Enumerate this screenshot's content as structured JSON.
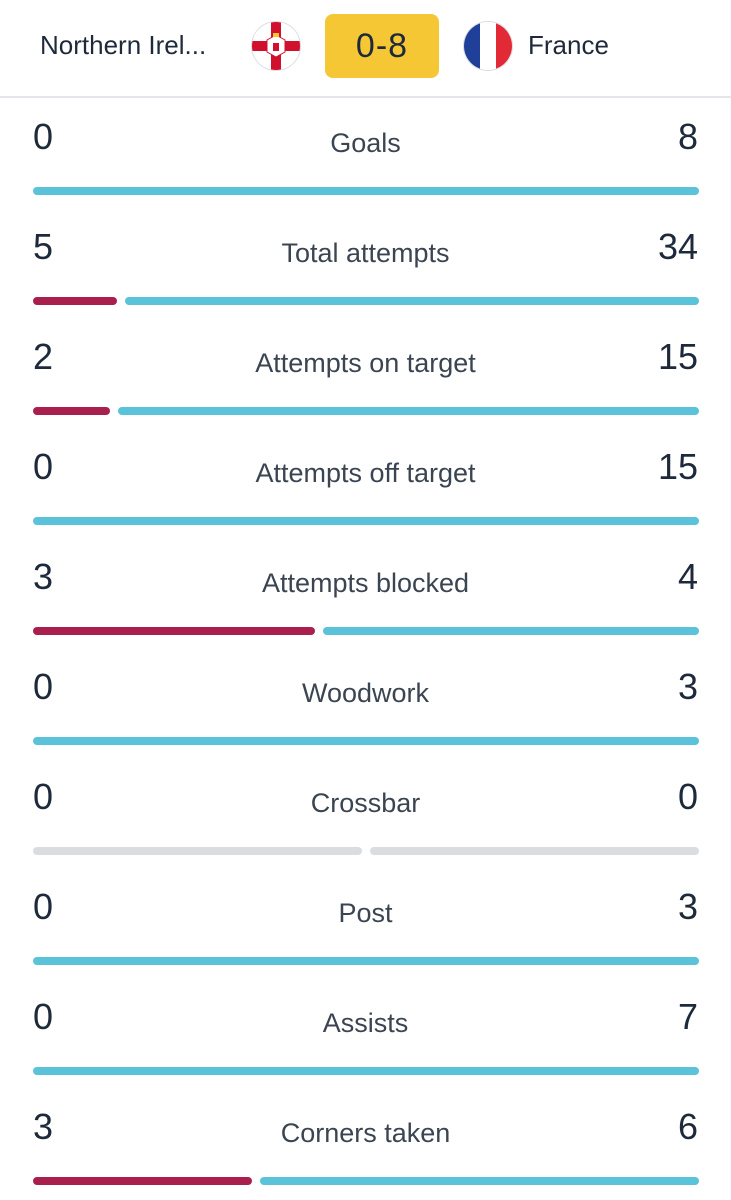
{
  "match": {
    "home_team": "Northern Irel...",
    "away_team": "France",
    "score": "0-8",
    "home_flag_icon": "northern-ireland-flag-icon",
    "away_flag_icon": "france-flag-icon"
  },
  "colors": {
    "home_bar": "#a9204f",
    "away_bar": "#5bc3d9",
    "empty_bar": "#dadddf",
    "score_badge": "#f5c735"
  },
  "stats": [
    {
      "label": "Goals",
      "home": "0",
      "away": "8"
    },
    {
      "label": "Total attempts",
      "home": "5",
      "away": "34"
    },
    {
      "label": "Attempts on target",
      "home": "2",
      "away": "15"
    },
    {
      "label": "Attempts off target",
      "home": "0",
      "away": "15"
    },
    {
      "label": "Attempts blocked",
      "home": "3",
      "away": "4"
    },
    {
      "label": "Woodwork",
      "home": "0",
      "away": "3"
    },
    {
      "label": "Crossbar",
      "home": "0",
      "away": "0"
    },
    {
      "label": "Post",
      "home": "0",
      "away": "3"
    },
    {
      "label": "Assists",
      "home": "0",
      "away": "7"
    },
    {
      "label": "Corners taken",
      "home": "3",
      "away": "6"
    }
  ]
}
